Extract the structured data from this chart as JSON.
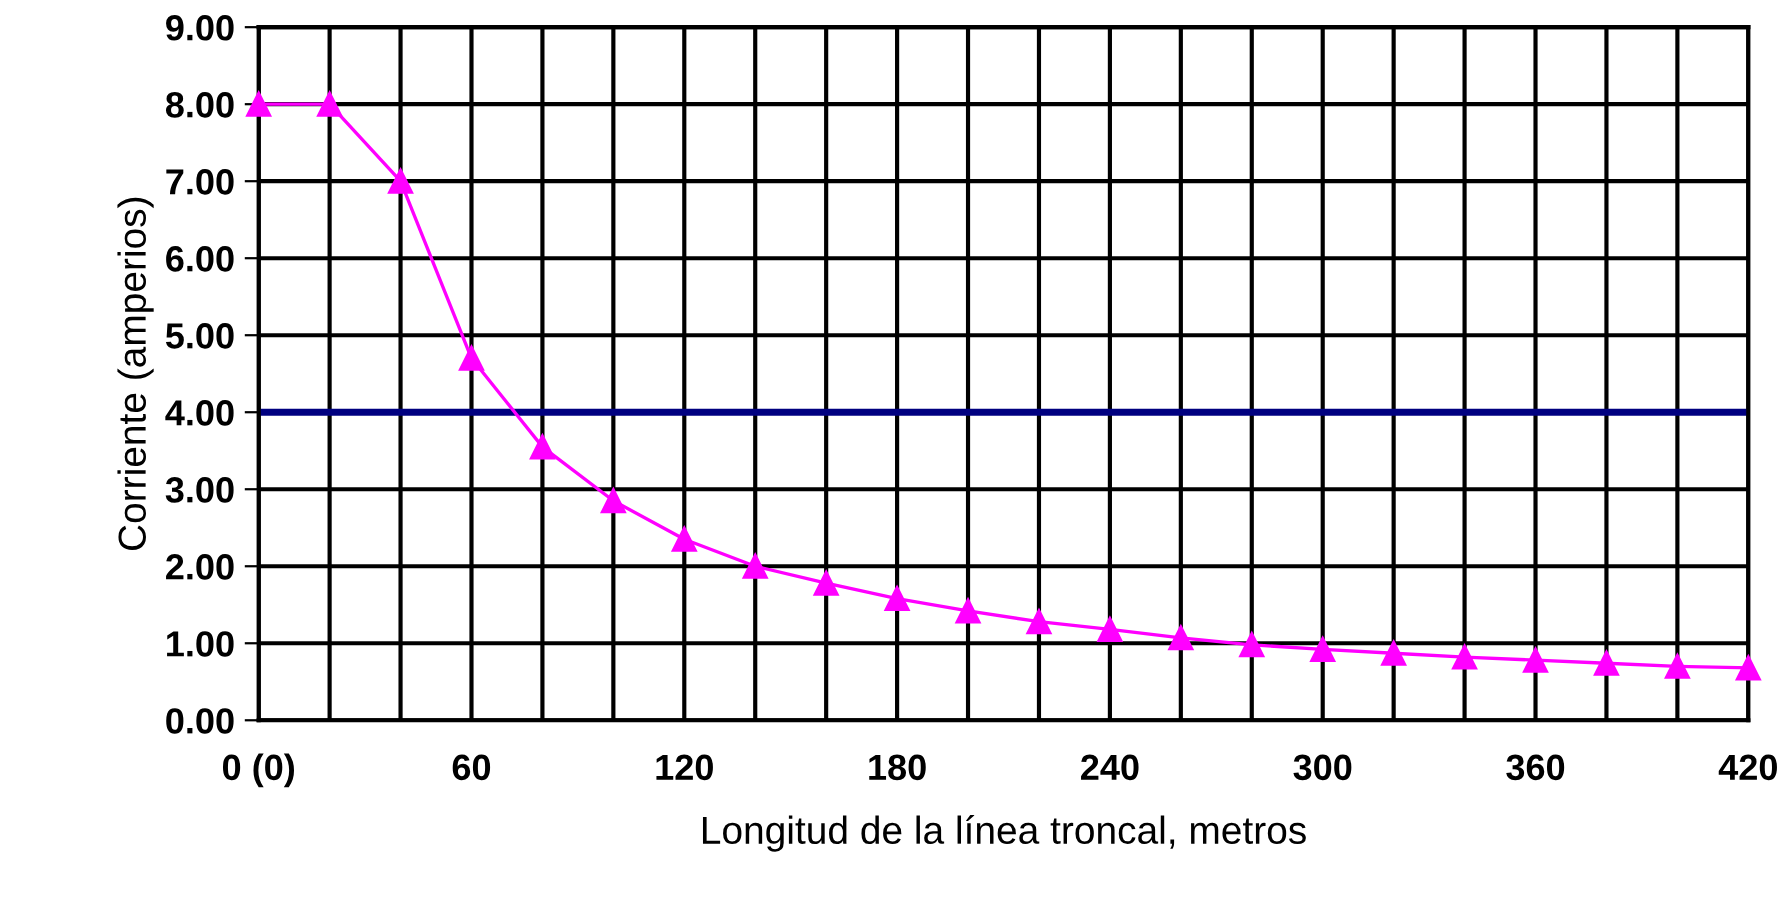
{
  "chart_data": {
    "type": "line",
    "xlabel": "Longitud de la línea troncal, metros",
    "ylabel": "Corriente (amperios)",
    "x": [
      0,
      20,
      40,
      60,
      80,
      100,
      120,
      140,
      160,
      180,
      200,
      220,
      240,
      260,
      280,
      300,
      320,
      340,
      360,
      380,
      400,
      420
    ],
    "series": [
      {
        "color": "#ff00ff",
        "values": [
          8.0,
          8.0,
          7.0,
          4.7,
          3.55,
          2.85,
          2.35,
          2.0,
          1.78,
          1.58,
          1.42,
          1.28,
          1.18,
          1.07,
          0.98,
          0.92,
          0.87,
          0.82,
          0.78,
          0.74,
          0.7,
          0.68
        ]
      }
    ],
    "marker": "triangle",
    "line_style": "solid",
    "grid": true,
    "xlim": [
      0,
      420
    ],
    "ylim": [
      0,
      9
    ],
    "xticks": [
      {
        "value": 0,
        "label": "0 (0)"
      },
      {
        "value": 20,
        "label": null
      },
      {
        "value": 40,
        "label": null
      },
      60,
      {
        "value": 80,
        "label": null
      },
      {
        "value": 100,
        "label": null
      },
      120,
      {
        "value": 140,
        "label": null
      },
      {
        "value": 160,
        "label": null
      },
      180,
      {
        "value": 200,
        "label": null
      },
      {
        "value": 220,
        "label": null
      },
      240,
      {
        "value": 260,
        "label": null
      },
      {
        "value": 280,
        "label": null
      },
      300,
      {
        "value": 320,
        "label": null
      },
      {
        "value": 340,
        "label": null
      },
      360,
      {
        "value": 380,
        "label": null
      },
      {
        "value": 400,
        "label": null
      },
      420
    ],
    "yticks": [
      {
        "value": 0,
        "label": "0.00"
      },
      {
        "value": 1,
        "label": "1.00"
      },
      {
        "value": 2,
        "label": "2.00"
      },
      {
        "value": 3,
        "label": "3.00"
      },
      {
        "value": 4,
        "label": "4.00"
      },
      {
        "value": 5,
        "label": "5.00"
      },
      {
        "value": 6,
        "label": "6.00"
      },
      {
        "value": 7,
        "label": "7.00"
      },
      {
        "value": 8,
        "label": "8.00"
      },
      {
        "value": 9,
        "label": "9.00"
      }
    ],
    "ref_lines": [
      {
        "axis": "y",
        "value": 4,
        "label": null,
        "color": "#000080",
        "line_style": "solid"
      }
    ]
  }
}
